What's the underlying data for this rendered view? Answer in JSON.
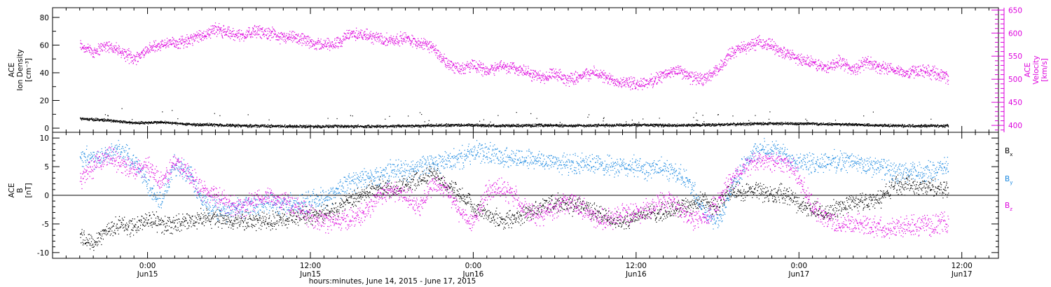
{
  "chart_data": [
    {
      "type": "scatter",
      "panel": "ace-swepam",
      "ylabel_left": [
        "ACE",
        "Ion Density",
        "[cm⁻³]"
      ],
      "ylabel_right": [
        "ACE",
        "Velocity",
        "[km/s]"
      ],
      "ylim_left": [
        -3,
        87
      ],
      "yticks_left": [
        0,
        20,
        40,
        60,
        80
      ],
      "ylim_right": [
        385,
        655
      ],
      "yticks_right": [
        400,
        450,
        500,
        550,
        600,
        650
      ],
      "x_unit": "hours since 2015-06-14 00:00 UT",
      "colors": {
        "density": "#000000",
        "velocity": "#dd00dd"
      },
      "series": [
        {
          "axis": "right",
          "x": [
            19.0,
            20.0,
            21.0,
            22.0,
            23.0,
            24.0,
            25.0,
            26.0,
            27.0,
            28.0,
            29.0,
            30.0,
            31.0,
            32.0,
            33.0,
            34.0,
            35.0,
            36.0,
            37.0,
            38.0,
            39.0,
            40.0,
            41.0,
            42.0,
            43.0,
            44.0,
            45.0,
            46.0,
            47.0,
            48.0,
            49.0,
            50.0,
            51.0,
            52.0,
            53.0,
            54.0,
            55.0,
            56.0,
            57.0,
            58.0,
            59.0,
            60.0,
            61.0,
            62.0,
            63.0,
            64.0,
            65.0,
            66.0,
            67.0,
            68.0,
            69.0,
            70.0,
            71.0,
            72.0,
            73.0,
            74.0,
            75.0,
            76.0,
            77.0,
            78.0,
            79.0,
            80.0,
            81.0,
            82.0,
            83.0
          ],
          "values": [
            575,
            560,
            575,
            560,
            545,
            565,
            575,
            580,
            585,
            595,
            610,
            600,
            595,
            605,
            600,
            590,
            590,
            580,
            575,
            580,
            600,
            595,
            590,
            585,
            590,
            580,
            570,
            535,
            525,
            530,
            520,
            530,
            525,
            515,
            505,
            510,
            500,
            510,
            515,
            500,
            495,
            490,
            495,
            510,
            520,
            505,
            500,
            520,
            560,
            570,
            580,
            575,
            555,
            545,
            535,
            525,
            540,
            520,
            540,
            525,
            520,
            515,
            520,
            515,
            505
          ]
        },
        {
          "axis": "left",
          "x": [
            19.0,
            21.0,
            23.0,
            25.0,
            27.0,
            29.0,
            31.0,
            33.0,
            35.0,
            37.0,
            39.0,
            41.0,
            43.0,
            45.0,
            47.0,
            49.0,
            51.0,
            53.0,
            55.0,
            57.0,
            59.0,
            61.0,
            63.0,
            65.0,
            67.0,
            69.0,
            71.0,
            73.0,
            75.0,
            77.0,
            79.0,
            81.0,
            83.0
          ],
          "values": [
            7,
            6,
            4,
            4.5,
            3,
            2.5,
            2,
            1.8,
            1.6,
            1.5,
            1.5,
            1.6,
            1.8,
            2.2,
            2.5,
            2.2,
            2,
            2.4,
            2,
            2.2,
            2.4,
            2.5,
            2.2,
            2.6,
            3,
            3.5,
            3.5,
            3.5,
            3,
            2.5,
            2,
            2,
            2
          ]
        }
      ]
    },
    {
      "type": "scatter",
      "panel": "ace-mag",
      "ylabel": [
        "ACE",
        "B",
        "[nT]"
      ],
      "ylim": [
        -11,
        11
      ],
      "yticks": [
        -10,
        -5,
        0,
        5,
        10
      ],
      "zero_line": true,
      "legend_placement": "right",
      "legend": [
        {
          "label": "B",
          "sub": "x",
          "color": "#000000"
        },
        {
          "label": "B",
          "sub": "y",
          "color": "#1a88e0"
        },
        {
          "label": "B",
          "sub": "z",
          "color": "#dd00dd"
        }
      ],
      "x_unit": "hours since 2015-06-14 00:00 UT",
      "series": [
        {
          "name": "Bx",
          "color": "#000000",
          "x": [
            19.0,
            20.0,
            21.0,
            22.0,
            23.0,
            24.0,
            25.0,
            26.0,
            27.0,
            28.0,
            29.0,
            30.0,
            31.0,
            32.0,
            33.0,
            34.0,
            35.0,
            36.0,
            37.0,
            38.0,
            39.0,
            40.0,
            41.0,
            42.0,
            43.0,
            44.0,
            45.0,
            46.0,
            47.0,
            48.0,
            49.0,
            50.0,
            51.0,
            52.0,
            53.0,
            54.0,
            55.0,
            56.0,
            57.0,
            58.0,
            59.0,
            60.0,
            61.0,
            62.0,
            63.0,
            64.0,
            65.0,
            66.0,
            67.0,
            68.0,
            69.0,
            70.0,
            71.0,
            72.0,
            73.0,
            74.0,
            75.0,
            76.0,
            77.0,
            78.0,
            79.0,
            80.0,
            81.0,
            82.0,
            83.0
          ],
          "values": [
            -7.5,
            -8,
            -6,
            -5,
            -5.5,
            -4,
            -5,
            -5,
            -4.5,
            -4,
            -4,
            -4.5,
            -4.5,
            -4.5,
            -4.5,
            -4,
            -3.5,
            -3.5,
            -3,
            -2,
            -1,
            0.5,
            1.5,
            1,
            2,
            3,
            4,
            2,
            0,
            -2,
            -3,
            -4.5,
            -4,
            -3,
            -2,
            -1,
            -2,
            -1.5,
            -3,
            -4,
            -4.5,
            -3.5,
            -3,
            -3,
            -2,
            -1.5,
            -1,
            -2,
            1,
            0.5,
            1,
            0,
            0.5,
            -1.5,
            -2.5,
            -3,
            -2,
            -1,
            -1,
            -0.5,
            2,
            2,
            1.5,
            1.5,
            1
          ]
        },
        {
          "name": "By",
          "color": "#1a88e0",
          "x": [
            19.0,
            20.0,
            21.0,
            22.0,
            23.0,
            24.0,
            25.0,
            26.0,
            27.0,
            28.0,
            29.0,
            30.0,
            31.0,
            32.0,
            33.0,
            34.0,
            35.0,
            36.0,
            37.0,
            38.0,
            39.0,
            40.0,
            41.0,
            42.0,
            43.0,
            44.0,
            45.0,
            46.0,
            47.0,
            48.0,
            49.0,
            50.0,
            51.0,
            52.0,
            53.0,
            54.0,
            55.0,
            56.0,
            57.0,
            58.0,
            59.0,
            60.0,
            61.0,
            62.0,
            63.0,
            64.0,
            65.0,
            66.0,
            67.0,
            68.0,
            69.0,
            70.0,
            71.0,
            72.0,
            73.0,
            74.0,
            75.0,
            76.0,
            77.0,
            78.0,
            79.0,
            80.0,
            81.0,
            82.0,
            83.0
          ],
          "values": [
            7,
            6.5,
            7.5,
            8,
            6,
            2,
            -1,
            5.5,
            4,
            -1,
            -2.5,
            -2.5,
            -2,
            -1.5,
            -1.5,
            -1.5,
            -1.5,
            -1,
            -0.5,
            1,
            2.5,
            3,
            3.5,
            4.5,
            4.5,
            5,
            5.5,
            6,
            6.5,
            7.5,
            7.5,
            7,
            6.5,
            6.5,
            6,
            6,
            5.5,
            5.5,
            5.5,
            5,
            5,
            5,
            4.5,
            5,
            4,
            2,
            -3,
            -4.5,
            1,
            6,
            8,
            8,
            7,
            6,
            5.5,
            6,
            6,
            6,
            5,
            5,
            4,
            4,
            4,
            4.5,
            5
          ]
        },
        {
          "name": "Bz",
          "color": "#dd00dd",
          "x": [
            19.0,
            20.0,
            21.0,
            22.0,
            23.0,
            24.0,
            25.0,
            26.0,
            27.0,
            28.0,
            29.0,
            30.0,
            31.0,
            32.0,
            33.0,
            34.0,
            35.0,
            36.0,
            37.0,
            38.0,
            39.0,
            40.0,
            41.0,
            42.0,
            43.0,
            44.0,
            45.0,
            46.0,
            47.0,
            48.0,
            49.0,
            50.0,
            51.0,
            52.0,
            53.0,
            54.0,
            55.0,
            56.0,
            57.0,
            58.0,
            59.0,
            60.0,
            61.0,
            62.0,
            63.0,
            64.0,
            65.0,
            66.0,
            67.0,
            68.0,
            69.0,
            70.0,
            71.0,
            72.0,
            73.0,
            74.0,
            75.0,
            76.0,
            77.0,
            78.0,
            79.0,
            80.0,
            81.0,
            82.0,
            83.0
          ],
          "values": [
            3,
            5,
            7,
            6,
            4,
            5.5,
            2,
            6,
            4,
            1,
            0,
            -1.5,
            -2,
            -1,
            0,
            -1,
            -2,
            -3.5,
            -4.5,
            -4.5,
            -4,
            -3,
            0,
            1,
            0,
            -2,
            2,
            1,
            -3,
            -5,
            1,
            1,
            0,
            -3,
            -3.5,
            -2,
            -1,
            -2,
            -4,
            -4,
            -3,
            -3,
            -2,
            -1,
            -2,
            -4,
            -4,
            -1,
            3,
            5,
            6,
            6,
            6,
            3,
            -2,
            -4,
            -5,
            -5,
            -5,
            -5.5,
            -5.5,
            -5.5,
            -5,
            -5,
            -4.5
          ]
        }
      ]
    }
  ],
  "time_axis": {
    "xlim_hours": [
      17.0,
      86.7
    ],
    "major_ticks": [
      {
        "hour": 24,
        "time": "0:00",
        "date": "Jun15"
      },
      {
        "hour": 36,
        "time": "12:00",
        "date": "Jun15"
      },
      {
        "hour": 48,
        "time": "0:00",
        "date": "Jun16"
      },
      {
        "hour": 60,
        "time": "12:00",
        "date": "Jun16"
      },
      {
        "hour": 72,
        "time": "0:00",
        "date": "Jun17"
      },
      {
        "hour": 84,
        "time": "12:00",
        "date": "Jun17"
      }
    ],
    "minor_tick_step_hours": 1,
    "title": "hours:minutes, June 14, 2015 - June 17, 2015"
  }
}
